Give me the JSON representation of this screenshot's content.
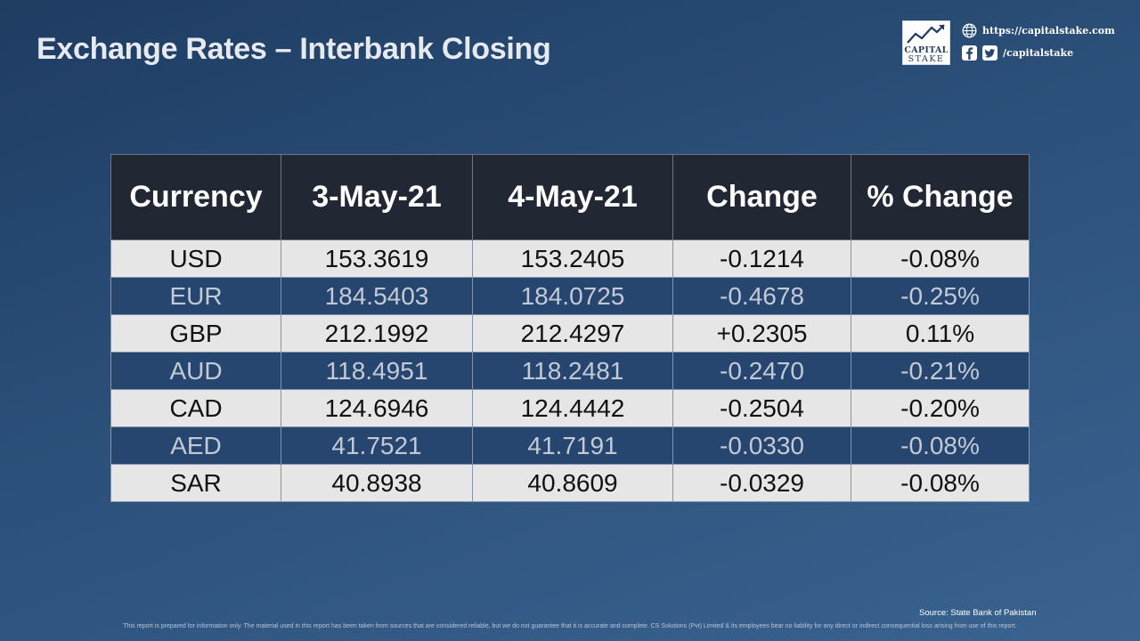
{
  "title": "Exchange Rates – Interbank Closing",
  "brand": {
    "logo_line1": "CAPITAL",
    "logo_line2": "STAKE",
    "website": "https://capitalstake.com",
    "social_handle": "/capitalstake"
  },
  "table": {
    "headers": [
      "Currency",
      "3-May-21",
      "4-May-21",
      "Change",
      "% Change"
    ],
    "rows": [
      [
        "USD",
        "153.3619",
        "153.2405",
        "-0.1214",
        "-0.08%"
      ],
      [
        "EUR",
        "184.5403",
        "184.0725",
        "-0.4678",
        "-0.25%"
      ],
      [
        "GBP",
        "212.1992",
        "212.4297",
        "+0.2305",
        "0.11%"
      ],
      [
        "AUD",
        "118.4951",
        "118.2481",
        "-0.2470",
        "-0.21%"
      ],
      [
        "CAD",
        "124.6946",
        "124.4442",
        "-0.2504",
        "-0.20%"
      ],
      [
        "AED",
        "41.7521",
        "41.7191",
        "-0.0330",
        "-0.08%"
      ],
      [
        "SAR",
        "40.8938",
        "40.8609",
        "-0.0329",
        "-0.08%"
      ]
    ]
  },
  "source": "Source: State Bank of Pakistan",
  "disclaimer": "This report is prepared for information only. The material used in this report has been taken from sources that are considered reliable, but we do not guarantee that it is accurate and complete. CS Solutions (Pvt) Limited & its employees bear no liability for any direct or indirect consequential loss arising from use of this report.",
  "colors": {
    "background": "#2b5079",
    "header_bg": "#212733",
    "row_light": "#e6e6e6",
    "row_dark": "#26466f"
  },
  "icons": [
    "capital-stake-logo",
    "globe-icon",
    "facebook-icon",
    "twitter-icon"
  ]
}
